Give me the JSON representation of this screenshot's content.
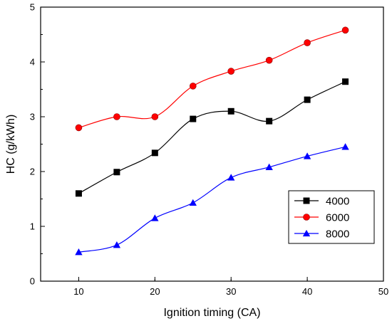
{
  "chart_data": {
    "type": "line",
    "title": "",
    "xlabel": "Ignition timing (CA)",
    "ylabel": "HC (g/kWh)",
    "xlim": [
      5,
      50
    ],
    "ylim": [
      0,
      5
    ],
    "x_ticks": [
      10,
      20,
      30,
      40,
      50
    ],
    "y_ticks": [
      0,
      1,
      2,
      3,
      4,
      5
    ],
    "grid": false,
    "legend_position": "bottom-right",
    "x": [
      10,
      15,
      20,
      25,
      30,
      35,
      40,
      45
    ],
    "series": [
      {
        "name": "4000",
        "color": "#000000",
        "marker": "square",
        "values": [
          1.6,
          1.99,
          2.34,
          2.96,
          3.1,
          2.92,
          3.31,
          3.64
        ]
      },
      {
        "name": "6000",
        "color": "#ff0000",
        "marker": "circle",
        "values": [
          2.8,
          3.0,
          3.0,
          3.56,
          3.83,
          4.03,
          4.35,
          4.58
        ]
      },
      {
        "name": "8000",
        "color": "#0000ff",
        "marker": "triangle",
        "values": [
          0.53,
          0.66,
          1.15,
          1.43,
          1.89,
          2.08,
          2.28,
          2.45
        ]
      }
    ]
  }
}
